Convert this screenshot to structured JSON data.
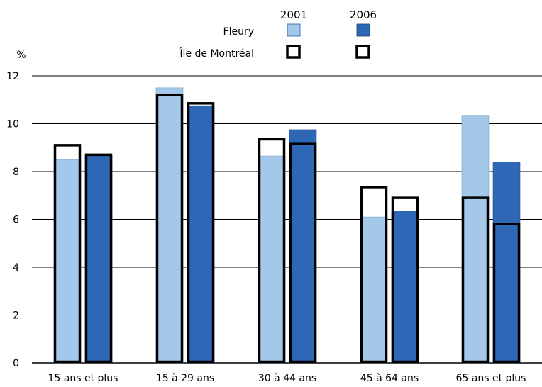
{
  "chart_data": {
    "type": "bar",
    "title": "",
    "ylabel": "%",
    "xlabel": "",
    "ylim": [
      0,
      12
    ],
    "yticks": [
      0,
      2,
      4,
      6,
      8,
      10,
      12
    ],
    "grid": true,
    "legend": {
      "placement": "top-center",
      "years": [
        "2001",
        "2006"
      ],
      "rows": [
        "Fleury",
        "Île de Montréal"
      ]
    },
    "categories": [
      "15 ans et plus",
      "15 à 29 ans",
      "30 à 44 ans",
      "45 à 64 ans",
      "65 ans et plus"
    ],
    "series": [
      {
        "name": "Fleury",
        "year": "2001",
        "kind": "filled",
        "color": "#a3c8ea",
        "values": [
          8.5,
          11.5,
          8.65,
          6.1,
          10.35
        ]
      },
      {
        "name": "Fleury",
        "year": "2006",
        "kind": "filled",
        "color": "#2d67b6",
        "values": [
          8.7,
          10.75,
          9.75,
          6.35,
          8.4
        ]
      },
      {
        "name": "Île de Montréal",
        "year": "2001",
        "kind": "outline",
        "color": "#000000",
        "values": [
          9.1,
          11.2,
          9.35,
          7.35,
          6.9
        ]
      },
      {
        "name": "Île de Montréal",
        "year": "2006",
        "kind": "outline",
        "color": "#000000",
        "values": [
          8.7,
          10.85,
          9.15,
          6.9,
          5.8
        ]
      }
    ]
  }
}
